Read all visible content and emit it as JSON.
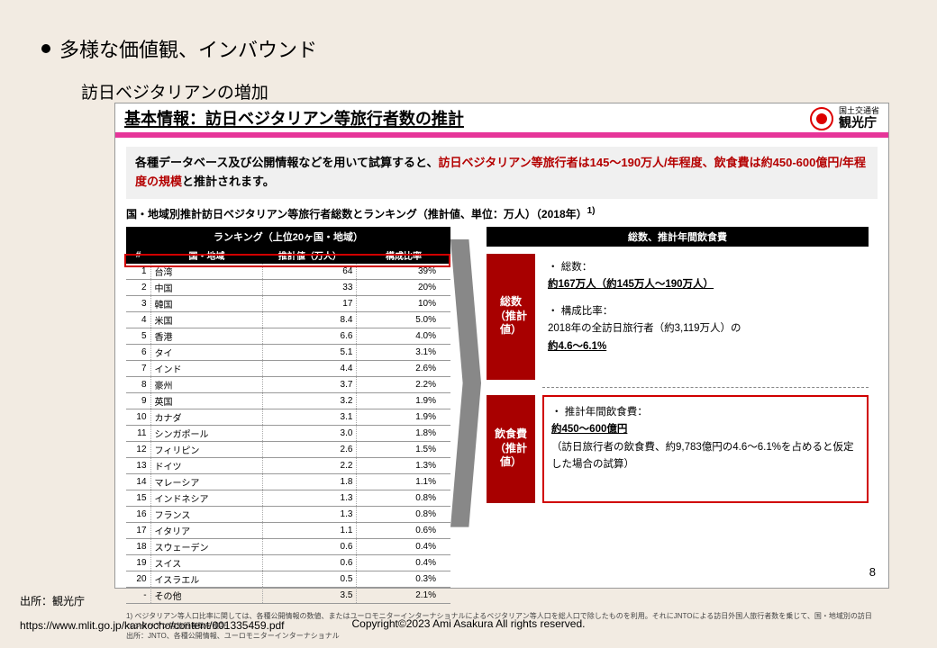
{
  "bullet_title": "多様な価値観、インバウンド",
  "subtitle": "訪日ベジタリアンの増加",
  "doc": {
    "title": "基本情報：訪日ベジタリアン等旅行者数の推計",
    "agency_small": "国土交通省",
    "agency_big": "観光庁",
    "intro_black1": "各種データベース及び公開情報などを用いて試算すると、",
    "intro_red": "訪日ベジタリアン等旅行者は145～190万人/年程度、飲食費は約450-600億円/年程度の規模",
    "intro_black2": "と推計されます。",
    "table_caption": "国・地域別推計訪日ベジタリアン等旅行者総数とランキング（推計値、単位：万人）（2018年）",
    "table_caption_sup": "1)",
    "left_header": "ランキング（上位20ヶ国・地域）",
    "col_rank": "#",
    "col_country": "国・地域",
    "col_value": "推計値（万人）",
    "col_ratio": "構成比率",
    "rows": [
      {
        "r": "1",
        "c": "台湾",
        "v": "64",
        "p": "39%"
      },
      {
        "r": "2",
        "c": "中国",
        "v": "33",
        "p": "20%"
      },
      {
        "r": "3",
        "c": "韓国",
        "v": "17",
        "p": "10%"
      },
      {
        "r": "4",
        "c": "米国",
        "v": "8.4",
        "p": "5.0%"
      },
      {
        "r": "5",
        "c": "香港",
        "v": "6.6",
        "p": "4.0%"
      },
      {
        "r": "6",
        "c": "タイ",
        "v": "5.1",
        "p": "3.1%"
      },
      {
        "r": "7",
        "c": "インド",
        "v": "4.4",
        "p": "2.6%"
      },
      {
        "r": "8",
        "c": "豪州",
        "v": "3.7",
        "p": "2.2%"
      },
      {
        "r": "9",
        "c": "英国",
        "v": "3.2",
        "p": "1.9%"
      },
      {
        "r": "10",
        "c": "カナダ",
        "v": "3.1",
        "p": "1.9%"
      },
      {
        "r": "11",
        "c": "シンガポール",
        "v": "3.0",
        "p": "1.8%"
      },
      {
        "r": "12",
        "c": "フィリピン",
        "v": "2.6",
        "p": "1.5%"
      },
      {
        "r": "13",
        "c": "ドイツ",
        "v": "2.2",
        "p": "1.3%"
      },
      {
        "r": "14",
        "c": "マレーシア",
        "v": "1.8",
        "p": "1.1%"
      },
      {
        "r": "15",
        "c": "インドネシア",
        "v": "1.3",
        "p": "0.8%"
      },
      {
        "r": "16",
        "c": "フランス",
        "v": "1.3",
        "p": "0.8%"
      },
      {
        "r": "17",
        "c": "イタリア",
        "v": "1.1",
        "p": "0.6%"
      },
      {
        "r": "18",
        "c": "スウェーデン",
        "v": "0.6",
        "p": "0.4%"
      },
      {
        "r": "19",
        "c": "スイス",
        "v": "0.6",
        "p": "0.4%"
      },
      {
        "r": "20",
        "c": "イスラエル",
        "v": "0.5",
        "p": "0.3%"
      },
      {
        "r": "-",
        "c": "その他",
        "v": "3.5",
        "p": "2.1%"
      }
    ],
    "right_header": "総数、推計年間飲食費",
    "right1_tab": "総数\n（推計値）",
    "right1_line1a": "総数：",
    "right1_line1b": "約167万人（約145万人～190万人）",
    "right1_line2a": "構成比率：",
    "right1_line2b": "2018年の全訪日旅行者（約3,119万人）の",
    "right1_line2c": "約4.6～6.1%",
    "right2_tab": "飲食費\n（推計値）",
    "right2_line1a": "推計年間飲食費：",
    "right2_line1b": "約450～600億円",
    "right2_line2": "（訪日旅行者の飲食費、約9,783億円の4.6～6.1%を占めると仮定した場合の試算）",
    "footnote": "1) ベジタリアン等人口比率に関しては、各種公開情報の数値、またはユーロモニターインターナショナルによるベジタリアン等人口を総人口で除したものを利用。それにJNTOによる訪日外国人旅行者数を乗じて、国・地域別の訪日ベジタリアン等旅行者数を推計\n出所：JNTO、各種公開情報、ユーロモニターインターナショナル",
    "page_num": "8"
  },
  "source": "出所：観光庁",
  "url": "https://www.mlit.go.jp/kankocho/content/001335459.pdf",
  "copyright": "Copyright©2023 Ami Asakura All rights reserved."
}
